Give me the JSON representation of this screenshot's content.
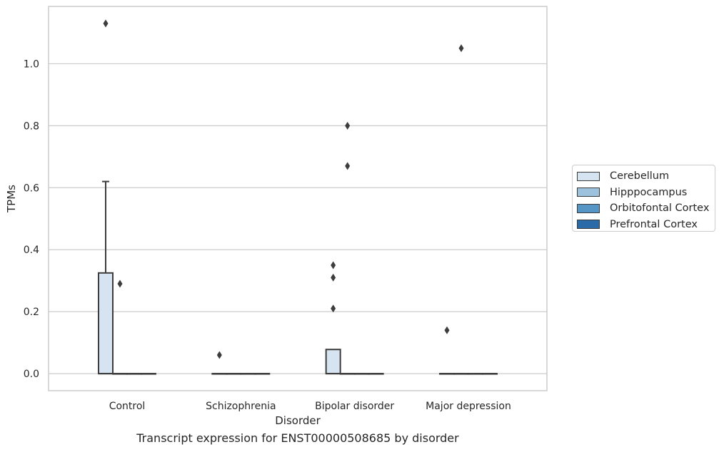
{
  "chart_data": {
    "type": "box",
    "title": "",
    "caption": "Transcript expression for ENST00000508685 by disorder",
    "xlabel": "Disorder",
    "ylabel": "TPMs",
    "categories": [
      "Control",
      "Schizophrenia",
      "Bipolar disorder",
      "Major depression"
    ],
    "yticks": [
      "0.0",
      "0.2",
      "0.4",
      "0.6",
      "0.8",
      "1.0"
    ],
    "ylim": [
      -0.055,
      1.185
    ],
    "grid": true,
    "legend_position": "right, outside plot",
    "series": [
      {
        "name": "Cerebellum",
        "color": "#d6e3f1",
        "boxes": [
          {
            "category": "Control",
            "q1": 0.0,
            "median": 0.0,
            "q3": 0.325,
            "whisker_low": 0.0,
            "whisker_high": 0.62,
            "outliers": [
              1.13
            ]
          },
          {
            "category": "Schizophrenia",
            "q1": 0.0,
            "median": 0.0,
            "q3": 0.0,
            "whisker_low": 0.0,
            "whisker_high": 0.0,
            "outliers": [
              0.06
            ]
          },
          {
            "category": "Bipolar disorder",
            "q1": 0.0,
            "median": 0.0,
            "q3": 0.078,
            "whisker_low": 0.0,
            "whisker_high": 0.078,
            "outliers": [
              0.21,
              0.31,
              0.35
            ]
          },
          {
            "category": "Major depression",
            "q1": 0.0,
            "median": 0.0,
            "q3": 0.0,
            "whisker_low": 0.0,
            "whisker_high": 0.0,
            "outliers": [
              0.14
            ]
          }
        ]
      },
      {
        "name": "Hipppocampus",
        "color": "#9cc2dd",
        "boxes": [
          {
            "category": "Control",
            "q1": 0.0,
            "median": 0.0,
            "q3": 0.0,
            "whisker_low": 0.0,
            "whisker_high": 0.0,
            "outliers": [
              0.29
            ]
          },
          {
            "category": "Schizophrenia",
            "q1": 0.0,
            "median": 0.0,
            "q3": 0.0,
            "whisker_low": 0.0,
            "whisker_high": 0.0,
            "outliers": []
          },
          {
            "category": "Bipolar disorder",
            "q1": 0.0,
            "median": 0.0,
            "q3": 0.0,
            "whisker_low": 0.0,
            "whisker_high": 0.0,
            "outliers": [
              0.67,
              0.8
            ]
          },
          {
            "category": "Major depression",
            "q1": 0.0,
            "median": 0.0,
            "q3": 0.0,
            "whisker_low": 0.0,
            "whisker_high": 0.0,
            "outliers": [
              1.05
            ]
          }
        ]
      },
      {
        "name": "Orbitofontal Cortex",
        "color": "#5596c6",
        "boxes": [
          {
            "category": "Control",
            "q1": 0.0,
            "median": 0.0,
            "q3": 0.0,
            "whisker_low": 0.0,
            "whisker_high": 0.0,
            "outliers": []
          },
          {
            "category": "Schizophrenia",
            "q1": 0.0,
            "median": 0.0,
            "q3": 0.0,
            "whisker_low": 0.0,
            "whisker_high": 0.0,
            "outliers": []
          },
          {
            "category": "Bipolar disorder",
            "q1": 0.0,
            "median": 0.0,
            "q3": 0.0,
            "whisker_low": 0.0,
            "whisker_high": 0.0,
            "outliers": []
          },
          {
            "category": "Major depression",
            "q1": 0.0,
            "median": 0.0,
            "q3": 0.0,
            "whisker_low": 0.0,
            "whisker_high": 0.0,
            "outliers": []
          }
        ]
      },
      {
        "name": "Prefrontal Cortex",
        "color": "#2b6aa8",
        "boxes": [
          {
            "category": "Control",
            "q1": 0.0,
            "median": 0.0,
            "q3": 0.0,
            "whisker_low": 0.0,
            "whisker_high": 0.0,
            "outliers": []
          },
          {
            "category": "Schizophrenia",
            "q1": 0.0,
            "median": 0.0,
            "q3": 0.0,
            "whisker_low": 0.0,
            "whisker_high": 0.0,
            "outliers": []
          },
          {
            "category": "Bipolar disorder",
            "q1": 0.0,
            "median": 0.0,
            "q3": 0.0,
            "whisker_low": 0.0,
            "whisker_high": 0.0,
            "outliers": []
          },
          {
            "category": "Major depression",
            "q1": 0.0,
            "median": 0.0,
            "q3": 0.0,
            "whisker_low": 0.0,
            "whisker_high": 0.0,
            "outliers": []
          }
        ]
      }
    ]
  }
}
